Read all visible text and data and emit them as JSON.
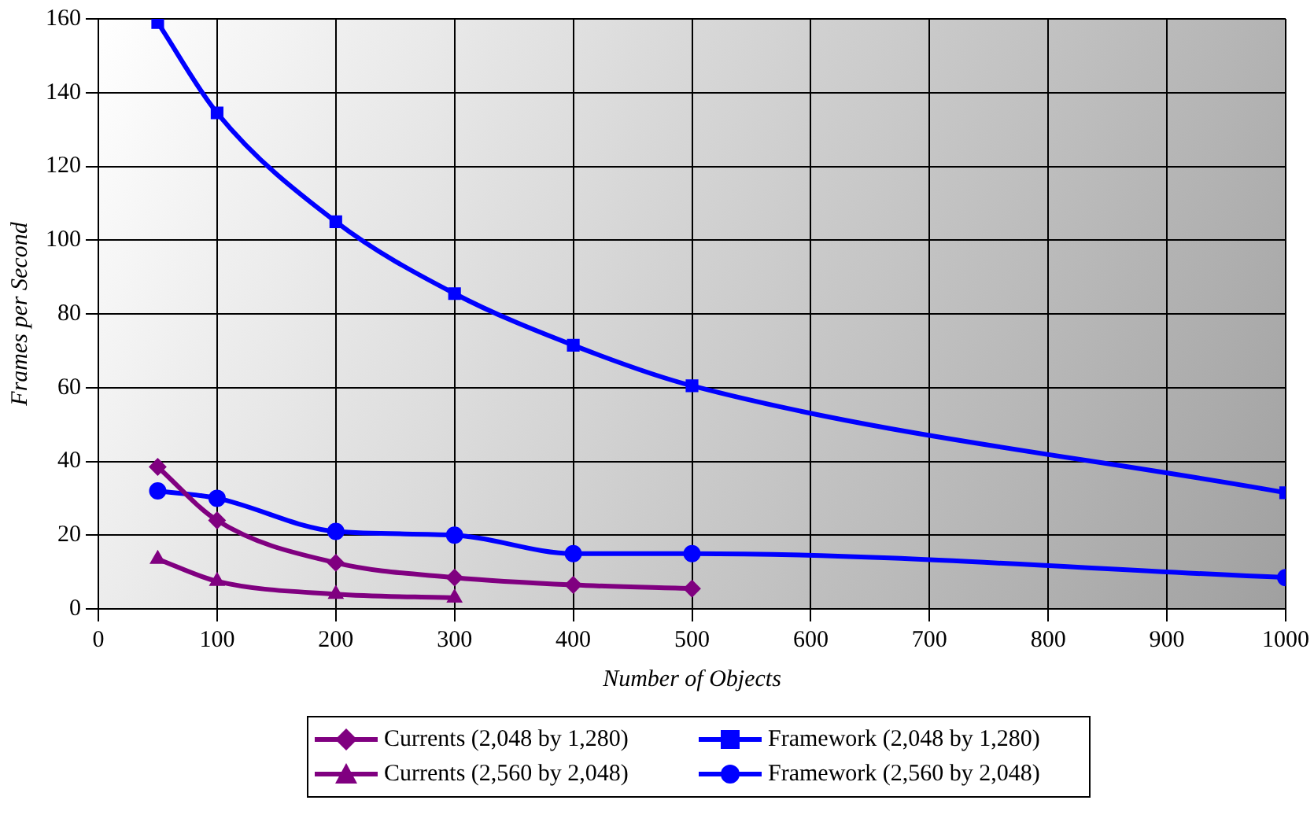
{
  "chart_data": {
    "type": "line",
    "xlabel": "Number of Objects",
    "ylabel": "Frames per Second",
    "xlim": [
      0,
      1000
    ],
    "xticks": [
      0,
      100,
      200,
      300,
      400,
      500,
      600,
      700,
      800,
      900,
      1000
    ],
    "ylim": [
      0,
      160
    ],
    "yticks": [
      0,
      20,
      40,
      60,
      80,
      100,
      120,
      140,
      160
    ],
    "grid": true,
    "legend": "bottom",
    "series": [
      {
        "name": "Currents (2,048 by 1,280)",
        "color": "#800080",
        "marker": "diamond",
        "x": [
          50,
          100,
          200,
          300,
          400,
          500
        ],
        "values": [
          38.5,
          24,
          12.5,
          8.5,
          6.5,
          5.5
        ]
      },
      {
        "name": "Framework (2,048 by 1,280)",
        "color": "#0000ff",
        "marker": "square",
        "x": [
          50,
          100,
          200,
          300,
          400,
          500,
          1000
        ],
        "values": [
          159,
          134.5,
          105,
          85.5,
          71.5,
          60.5,
          31.5
        ]
      },
      {
        "name": "Currents (2,560 by 2,048)",
        "color": "#800080",
        "marker": "triangle",
        "x": [
          50,
          100,
          200,
          300
        ],
        "values": [
          13.5,
          7.5,
          4,
          3
        ]
      },
      {
        "name": "Framework (2,560 by 2,048)",
        "color": "#0000ff",
        "marker": "circle",
        "x": [
          50,
          100,
          200,
          300,
          400,
          500,
          1000
        ],
        "values": [
          32,
          30,
          21,
          20,
          15,
          15,
          8.5
        ]
      }
    ]
  }
}
